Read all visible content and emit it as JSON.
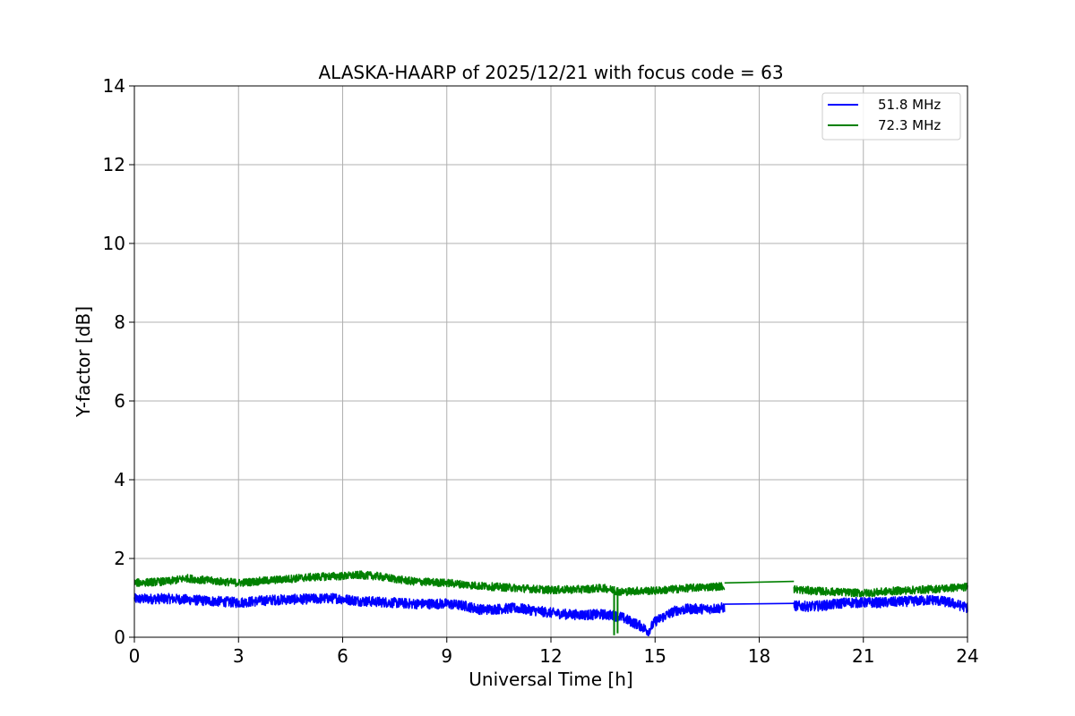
{
  "chart_data": {
    "type": "line",
    "title": "ALASKA-HAARP of 2025/12/21 with focus code = 63",
    "xlabel": "Universal Time [h]",
    "ylabel": "Y-factor [dB]",
    "xlim": [
      0,
      24
    ],
    "ylim": [
      0,
      14
    ],
    "xticks": [
      0,
      3,
      6,
      9,
      12,
      15,
      18,
      21,
      24
    ],
    "yticks": [
      0,
      2,
      4,
      6,
      8,
      10,
      12,
      14
    ],
    "xtick_labels": [
      "0",
      "3",
      "6",
      "9",
      "12",
      "15",
      "18",
      "21",
      "24"
    ],
    "ytick_labels": [
      "0",
      "2",
      "4",
      "6",
      "8",
      "10",
      "12",
      "14"
    ],
    "grid": true,
    "legend_position": "top-right",
    "series": [
      {
        "name": "51.8 MHz",
        "color": "#0000ff",
        "band": 0.13,
        "x": [
          0,
          1,
          2,
          3,
          4,
          5,
          5.8,
          6.5,
          7,
          8,
          9,
          9.5,
          10,
          10.5,
          11,
          11.5,
          12,
          12.5,
          13,
          13.5,
          13.8,
          14,
          14.3,
          14.6,
          14.8,
          15,
          15.3,
          15.6,
          16,
          16.5,
          17,
          19,
          19.5,
          20,
          20.5,
          21,
          21.5,
          22,
          22.5,
          23,
          23.5,
          24
        ],
        "y": [
          0.97,
          0.98,
          0.93,
          0.88,
          0.95,
          0.97,
          0.99,
          0.92,
          0.9,
          0.85,
          0.85,
          0.8,
          0.7,
          0.72,
          0.74,
          0.68,
          0.62,
          0.58,
          0.57,
          0.58,
          0.55,
          0.52,
          0.4,
          0.28,
          0.15,
          0.4,
          0.55,
          0.68,
          0.72,
          0.72,
          0.75,
          0.8,
          0.78,
          0.82,
          0.88,
          0.88,
          0.88,
          0.9,
          0.92,
          0.95,
          0.88,
          0.75
        ],
        "gap": [
          17,
          19
        ],
        "gap_line_y": [
          0.84,
          0.86
        ]
      },
      {
        "name": "72.3 MHz",
        "color": "#008000",
        "band": 0.1,
        "x": [
          0,
          1,
          1.5,
          2,
          3,
          4,
          5,
          5.7,
          6,
          6.5,
          7,
          7.5,
          8,
          9,
          10,
          11,
          12,
          13,
          13.5,
          13.8,
          14,
          14.5,
          15,
          16,
          17,
          19,
          19.5,
          20,
          21,
          22,
          23,
          24
        ],
        "y": [
          1.38,
          1.42,
          1.5,
          1.45,
          1.38,
          1.45,
          1.52,
          1.55,
          1.55,
          1.58,
          1.55,
          1.48,
          1.42,
          1.38,
          1.3,
          1.25,
          1.2,
          1.22,
          1.25,
          1.2,
          1.15,
          1.18,
          1.18,
          1.25,
          1.3,
          1.22,
          1.18,
          1.16,
          1.12,
          1.18,
          1.22,
          1.28
        ],
        "gap": [
          17,
          19
        ],
        "gap_line_y": [
          1.38,
          1.42
        ],
        "spikes": [
          [
            13.82,
            0.05
          ],
          [
            13.92,
            0.1
          ]
        ]
      }
    ]
  }
}
